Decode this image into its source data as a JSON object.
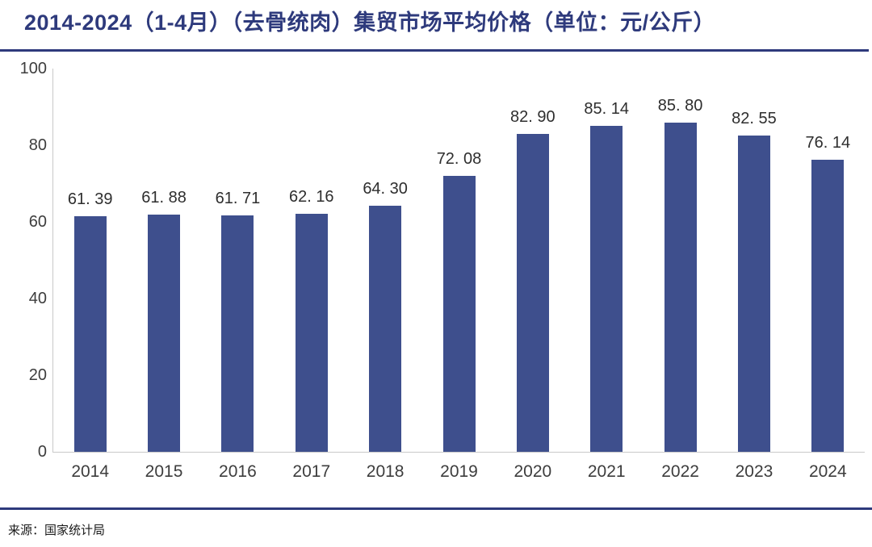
{
  "title": "2014-2024（1-4月）（去骨统肉）集贸市场平均价格（单位：元/公斤）",
  "source": "来源：国家统计局",
  "colors": {
    "bar": "#3e4f8d",
    "title": "#2e3a7c",
    "divider": "#2e3a7c",
    "axis_line": "#c9c9c9",
    "tick_text": "#3d3d3d",
    "value_text": "#2e2e2e"
  },
  "chart_data": {
    "type": "bar",
    "title": "2014-2024（1-4月）（去骨统肉）集贸市场平均价格（单位：元/公斤）",
    "unit": "元/公斤",
    "categories": [
      "2014",
      "2015",
      "2016",
      "2017",
      "2018",
      "2019",
      "2020",
      "2021",
      "2022",
      "2023",
      "2024"
    ],
    "values": [
      61.39,
      61.88,
      61.71,
      62.16,
      64.3,
      72.08,
      82.9,
      85.14,
      85.8,
      82.55,
      76.14
    ],
    "value_labels": [
      "61. 39",
      "61. 88",
      "61. 71",
      "62. 16",
      "64. 30",
      "72. 08",
      "82. 90",
      "85. 14",
      "85. 80",
      "82. 55",
      "76. 14"
    ],
    "xlabel": "",
    "ylabel": "",
    "ylim": [
      0,
      100
    ],
    "yticks": [
      0,
      20,
      40,
      60,
      80,
      100
    ],
    "grid": false,
    "legend_position": "none",
    "source": "来源：国家统计局"
  }
}
